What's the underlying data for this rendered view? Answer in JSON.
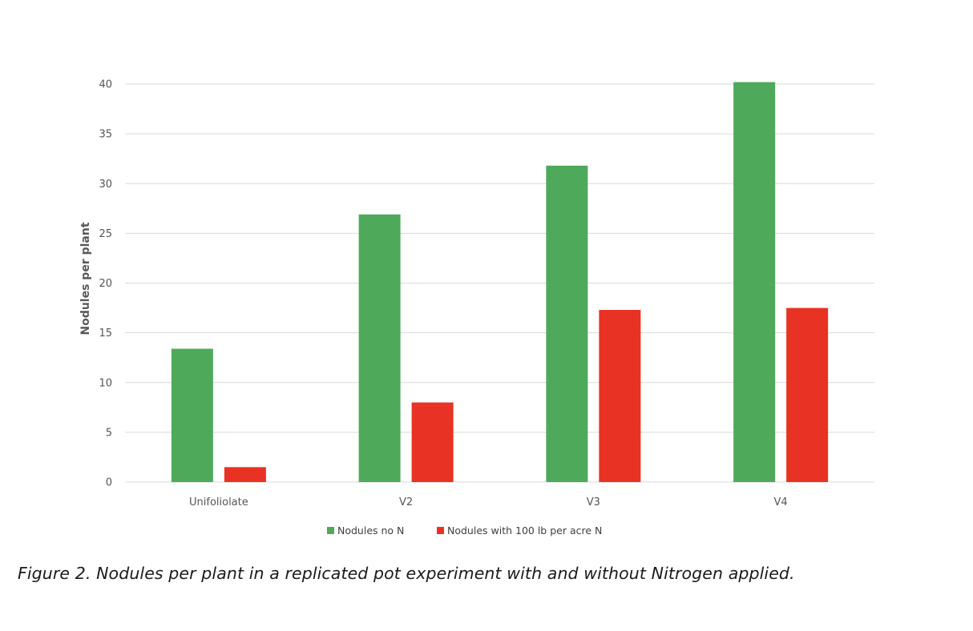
{
  "chart_data": {
    "type": "bar",
    "categories": [
      "Unifoliolate",
      "V2",
      "V3",
      "V4"
    ],
    "series": [
      {
        "name": "Nodules no N",
        "values": [
          13.4,
          26.9,
          31.8,
          40.2
        ],
        "color": "#4EAA5A"
      },
      {
        "name": "Nodules with 100 lb per acre N",
        "values": [
          1.5,
          8.0,
          17.3,
          17.5
        ],
        "color": "#E83223"
      }
    ],
    "title": "",
    "xlabel": "",
    "ylabel": "Nodules per plant",
    "ylim": [
      0,
      40
    ],
    "yticks": [
      0,
      5,
      10,
      15,
      20,
      25,
      30,
      35,
      40
    ],
    "grid": true,
    "legend_position": "bottom",
    "gridline_color": "#D9D9D9"
  },
  "caption": "Figure 2. Nodules per plant in a replicated pot experiment with and without Nitrogen applied."
}
